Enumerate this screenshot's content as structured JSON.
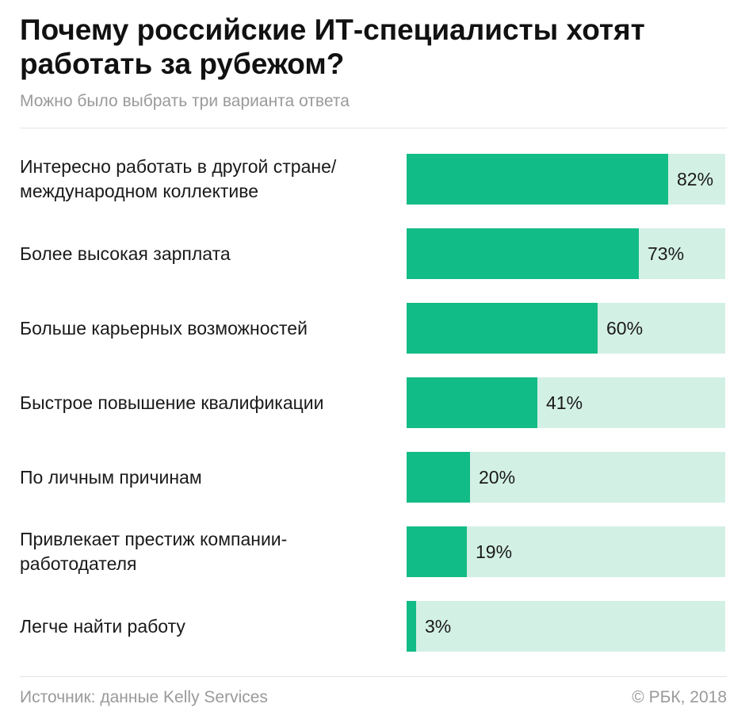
{
  "header": {
    "title": "Почему российские ИТ-специалисты хотят работать за рубежом?",
    "subtitle": "Можно было выбрать три варианта ответа"
  },
  "footer": {
    "source": "Источник: данные Kelly Services",
    "copyright": "© РБК, 2018"
  },
  "colors": {
    "bar": "#12bc86",
    "track": "#d3f0e5"
  },
  "chart_data": {
    "type": "bar",
    "orientation": "horizontal",
    "title": "Почему российские ИТ-специалисты хотят работать за рубежом?",
    "subtitle": "Можно было выбрать три варианта ответа",
    "categories": [
      "Интересно работать в другой стране/ международном коллективе",
      "Более высокая зарплата",
      "Больше карьерных возможностей",
      "Быстрое повышение квалификации",
      "По личным причинам",
      "Привлекает престиж компании-работодателя",
      "Легче найти работу"
    ],
    "values": [
      82,
      73,
      60,
      41,
      20,
      19,
      3
    ],
    "value_labels": [
      "82%",
      "73%",
      "60%",
      "41%",
      "20%",
      "19%",
      "3%"
    ],
    "xlim": [
      0,
      100
    ],
    "grid": false
  }
}
